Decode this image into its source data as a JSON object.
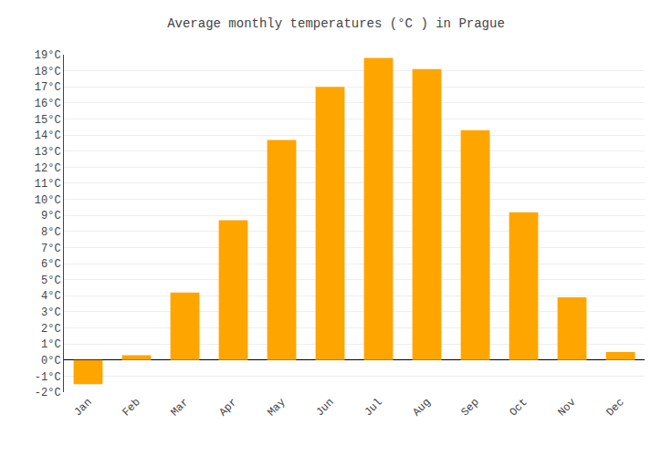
{
  "chart_data": {
    "type": "bar",
    "title": "Average monthly temperatures (°C ) in Prague",
    "categories": [
      "Jan",
      "Feb",
      "Mar",
      "Apr",
      "May",
      "Jun",
      "Jul",
      "Aug",
      "Sep",
      "Oct",
      "Nov",
      "Dec"
    ],
    "values": [
      -1.5,
      0.3,
      4.2,
      8.7,
      13.7,
      17.0,
      18.8,
      18.1,
      14.3,
      9.2,
      3.9,
      0.5
    ],
    "color": "#FFA500",
    "ylim": [
      -2,
      19
    ],
    "yticks": [
      {
        "value": -2,
        "label": "-2°C"
      },
      {
        "value": -1,
        "label": "-1°C"
      },
      {
        "value": 0,
        "label": "0°C"
      },
      {
        "value": 1,
        "label": "1°C"
      },
      {
        "value": 2,
        "label": "2°C"
      },
      {
        "value": 3,
        "label": "3°C"
      },
      {
        "value": 4,
        "label": "4°C"
      },
      {
        "value": 5,
        "label": "5°C"
      },
      {
        "value": 6,
        "label": "6°C"
      },
      {
        "value": 7,
        "label": "7°C"
      },
      {
        "value": 8,
        "label": "8°C"
      },
      {
        "value": 9,
        "label": "9°C"
      },
      {
        "value": 10,
        "label": "10°C"
      },
      {
        "value": 11,
        "label": "11°C"
      },
      {
        "value": 12,
        "label": "12°C"
      },
      {
        "value": 13,
        "label": "13°C"
      },
      {
        "value": 14,
        "label": "14°C"
      },
      {
        "value": 15,
        "label": "15°C"
      },
      {
        "value": 16,
        "label": "16°C"
      },
      {
        "value": 17,
        "label": "17°C"
      },
      {
        "value": 18,
        "label": "18°C"
      },
      {
        "value": 19,
        "label": "19°C"
      }
    ],
    "grid": true
  }
}
